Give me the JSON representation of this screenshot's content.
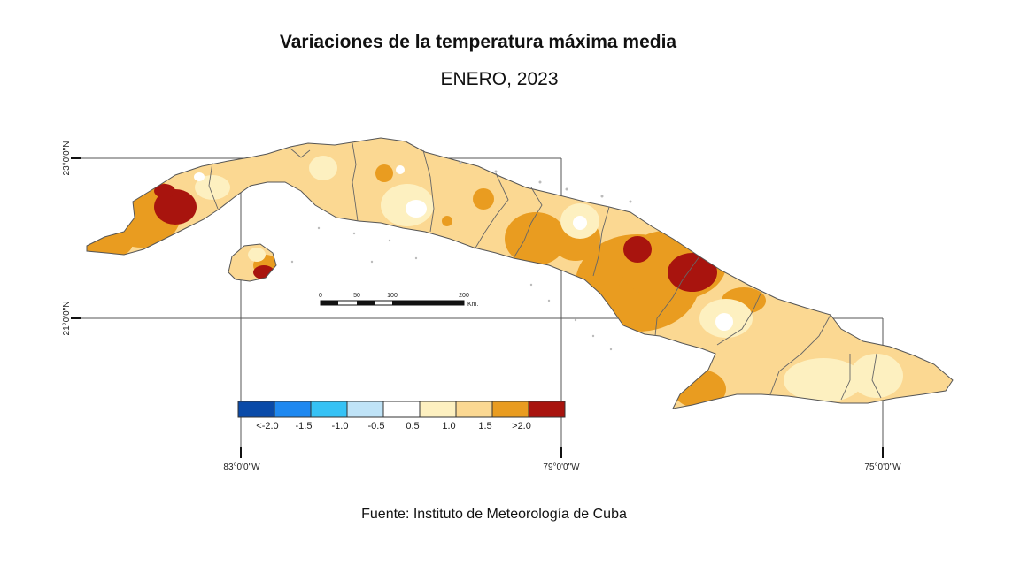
{
  "header": {
    "title": "Variaciones de la temperatura máxima media",
    "subtitle": "ENERO, 2023"
  },
  "footer": {
    "source": "Fuente: Instituto de Meteorología de Cuba"
  },
  "map": {
    "lat_labels": [
      "23°0'0\"N",
      "21°0'0\"N"
    ],
    "lon_labels": [
      "83°0'0\"W",
      "79°0'0\"W",
      "75°0'0\"W"
    ],
    "scale_bar": {
      "ticks": [
        "0",
        "50",
        "100",
        "200"
      ],
      "unit": "Km."
    },
    "legend": {
      "items": [
        {
          "label": "<-2.0",
          "color": "#0a4aa8"
        },
        {
          "label": "-1.5",
          "color": "#1e88f0"
        },
        {
          "label": "-1.0",
          "color": "#36c2f5"
        },
        {
          "label": "-0.5",
          "color": "#bfe3f7"
        },
        {
          "label": "0.5",
          "color": "#ffffff"
        },
        {
          "label": "1.0",
          "color": "#fdf0c0"
        },
        {
          "label": "1.5",
          "color": "#fbd892"
        },
        {
          "label": ">2.0",
          "color": "#e99c20"
        },
        {
          "label": "",
          "color": "#a8140e"
        }
      ]
    }
  }
}
